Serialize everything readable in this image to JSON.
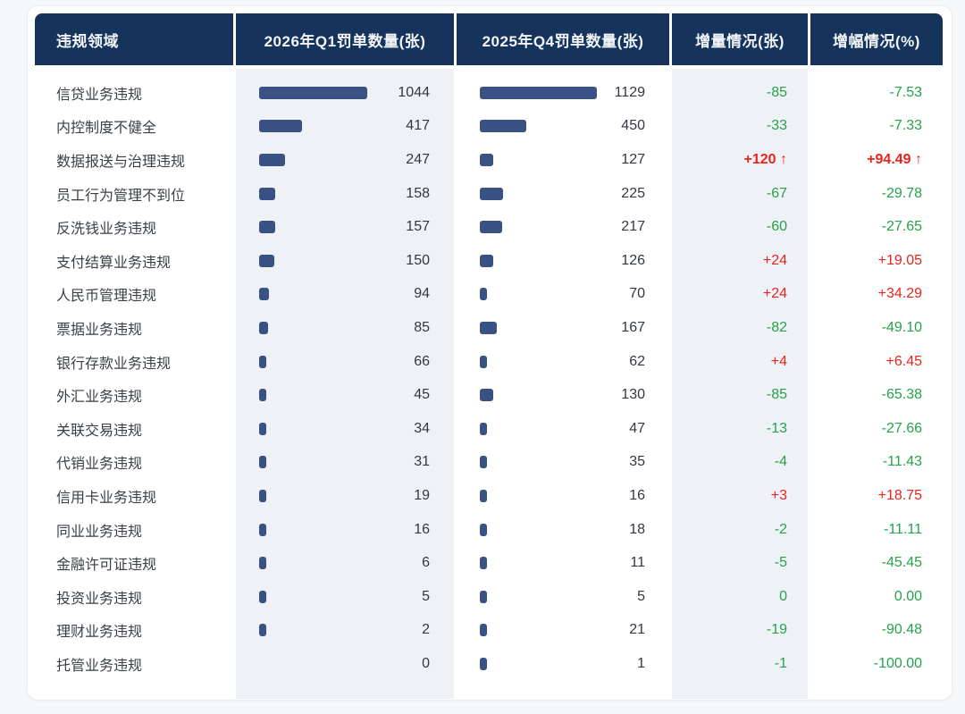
{
  "table": {
    "columns": [
      "违规领域",
      "2026年Q1罚单数量(张)",
      "2025年Q4罚单数量(张)",
      "增量情况(张)",
      "增幅情况(%)"
    ]
  },
  "colors": {
    "header_bg": "#16335b",
    "bar": "#3a5184",
    "shaded_column_bg": "#eef1f5",
    "positive_red": "#e9241c",
    "negative_green": "#26a24a"
  },
  "icons": {
    "up_arrow": "↑"
  },
  "chart_data": {
    "type": "table",
    "title": "",
    "categories_label": "违规领域",
    "series": [
      {
        "name": "2026年Q1罚单数量(张)",
        "display": "bar+value"
      },
      {
        "name": "2025年Q4罚单数量(张)",
        "display": "bar+value"
      },
      {
        "name": "增量情况(张)",
        "display": "value"
      },
      {
        "name": "增幅情况(%)",
        "display": "value"
      }
    ],
    "bar_scale_max": 1129,
    "rows": [
      {
        "label": "信贷业务违规",
        "q1": 1044,
        "q4": 1129,
        "delta": "-85",
        "pct": "-7.53",
        "trend": "down",
        "highlight": false
      },
      {
        "label": "内控制度不健全",
        "q1": 417,
        "q4": 450,
        "delta": "-33",
        "pct": "-7.33",
        "trend": "down",
        "highlight": false
      },
      {
        "label": "数据报送与治理违规",
        "q1": 247,
        "q4": 127,
        "delta": "+120",
        "pct": "+94.49",
        "trend": "up",
        "highlight": true
      },
      {
        "label": "员工行为管理不到位",
        "q1": 158,
        "q4": 225,
        "delta": "-67",
        "pct": "-29.78",
        "trend": "down",
        "highlight": false
      },
      {
        "label": "反洗钱业务违规",
        "q1": 157,
        "q4": 217,
        "delta": "-60",
        "pct": "-27.65",
        "trend": "down",
        "highlight": false
      },
      {
        "label": "支付结算业务违规",
        "q1": 150,
        "q4": 126,
        "delta": "+24",
        "pct": "+19.05",
        "trend": "up",
        "highlight": false
      },
      {
        "label": "人民币管理违规",
        "q1": 94,
        "q4": 70,
        "delta": "+24",
        "pct": "+34.29",
        "trend": "up",
        "highlight": false
      },
      {
        "label": "票据业务违规",
        "q1": 85,
        "q4": 167,
        "delta": "-82",
        "pct": "-49.10",
        "trend": "down",
        "highlight": false
      },
      {
        "label": "银行存款业务违规",
        "q1": 66,
        "q4": 62,
        "delta": "+4",
        "pct": "+6.45",
        "trend": "up",
        "highlight": false
      },
      {
        "label": "外汇业务违规",
        "q1": 45,
        "q4": 130,
        "delta": "-85",
        "pct": "-65.38",
        "trend": "down",
        "highlight": false
      },
      {
        "label": "关联交易违规",
        "q1": 34,
        "q4": 47,
        "delta": "-13",
        "pct": "-27.66",
        "trend": "down",
        "highlight": false
      },
      {
        "label": "代销业务违规",
        "q1": 31,
        "q4": 35,
        "delta": "-4",
        "pct": "-11.43",
        "trend": "down",
        "highlight": false
      },
      {
        "label": "信用卡业务违规",
        "q1": 19,
        "q4": 16,
        "delta": "+3",
        "pct": "+18.75",
        "trend": "up",
        "highlight": false
      },
      {
        "label": "同业业务违规",
        "q1": 16,
        "q4": 18,
        "delta": "-2",
        "pct": "-11.11",
        "trend": "down",
        "highlight": false
      },
      {
        "label": "金融许可证违规",
        "q1": 6,
        "q4": 11,
        "delta": "-5",
        "pct": "-45.45",
        "trend": "down",
        "highlight": false
      },
      {
        "label": "投资业务违规",
        "q1": 5,
        "q4": 5,
        "delta": "0",
        "pct": "0.00",
        "trend": "flat",
        "highlight": false
      },
      {
        "label": "理财业务违规",
        "q1": 2,
        "q4": 21,
        "delta": "-19",
        "pct": "-90.48",
        "trend": "down",
        "highlight": false
      },
      {
        "label": "托管业务违规",
        "q1": 0,
        "q4": 1,
        "delta": "-1",
        "pct": "-100.00",
        "trend": "down",
        "highlight": false
      }
    ]
  }
}
